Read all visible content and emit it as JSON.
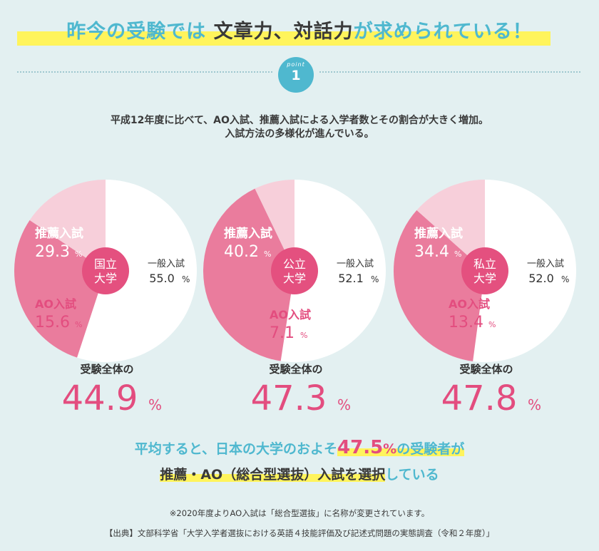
{
  "header": {
    "title_part1": "昨今の受験では",
    "title_part2": "文章力、対話力",
    "title_part3": "が求められている！",
    "point_label": "point",
    "point_number": "1"
  },
  "intro": {
    "line1": "平成12年度に比べて、AO入試、推薦入試による入学者数とその割合が大きく増加。",
    "line2": "入試方法の多様化が進んでいる。"
  },
  "chart_data": [
    {
      "type": "pie",
      "title": "国立大学",
      "title_line1": "国立",
      "title_line2": "大学",
      "slices": [
        {
          "label": "一般入試",
          "value": 55.0,
          "value_text": "55.0",
          "color": "#ffffff"
        },
        {
          "label": "推薦入試",
          "value": 29.3,
          "value_text": "29.3",
          "color": "#ea7c9d"
        },
        {
          "label": "AO入試",
          "value": 15.6,
          "value_text": "15.6",
          "color": "#f7cfda"
        }
      ],
      "total_label": "受験全体の",
      "total_value": "44.9",
      "unit": "%"
    },
    {
      "type": "pie",
      "title": "公立大学",
      "title_line1": "公立",
      "title_line2": "大学",
      "slices": [
        {
          "label": "一般入試",
          "value": 52.1,
          "value_text": "52.1",
          "color": "#ffffff"
        },
        {
          "label": "推薦入試",
          "value": 40.2,
          "value_text": "40.2",
          "color": "#ea7c9d"
        },
        {
          "label": "AO入試",
          "value": 7.1,
          "value_text": "7.1",
          "color": "#f7cfda"
        }
      ],
      "total_label": "受験全体の",
      "total_value": "47.3",
      "unit": "%"
    },
    {
      "type": "pie",
      "title": "私立大学",
      "title_line1": "私立",
      "title_line2": "大学",
      "slices": [
        {
          "label": "一般入試",
          "value": 52.0,
          "value_text": "52.0",
          "color": "#ffffff"
        },
        {
          "label": "推薦入試",
          "value": 34.4,
          "value_text": "34.4",
          "color": "#ea7c9d"
        },
        {
          "label": "AO入試",
          "value": 13.4,
          "value_text": "13.4",
          "color": "#f7cfda"
        }
      ],
      "total_label": "受験全体の",
      "total_value": "47.8",
      "unit": "%"
    }
  ],
  "summary": {
    "part1": "平均すると、日本の大学のおよそ",
    "value": "47.5",
    "unit": "%",
    "part2": "の受験者が",
    "line2_part1": "推薦・AO（総合型選抜）入試を選択",
    "line2_part2": "している"
  },
  "notes": {
    "note": "※2020年度よりAO入試は「総合型選抜」に名称が変更されています。",
    "source": "【出典】文部科学省「大学入学者選抜における英語４技能評価及び記述式問題の実態調査（令和２年度）」"
  },
  "colors": {
    "blue": "#4fb8cf",
    "pink_dark": "#ea7c9d",
    "pink_light": "#f7cfda",
    "pink_text": "#e34d7f",
    "center_pink": "#e4507f",
    "yellow": "#fff45c"
  }
}
